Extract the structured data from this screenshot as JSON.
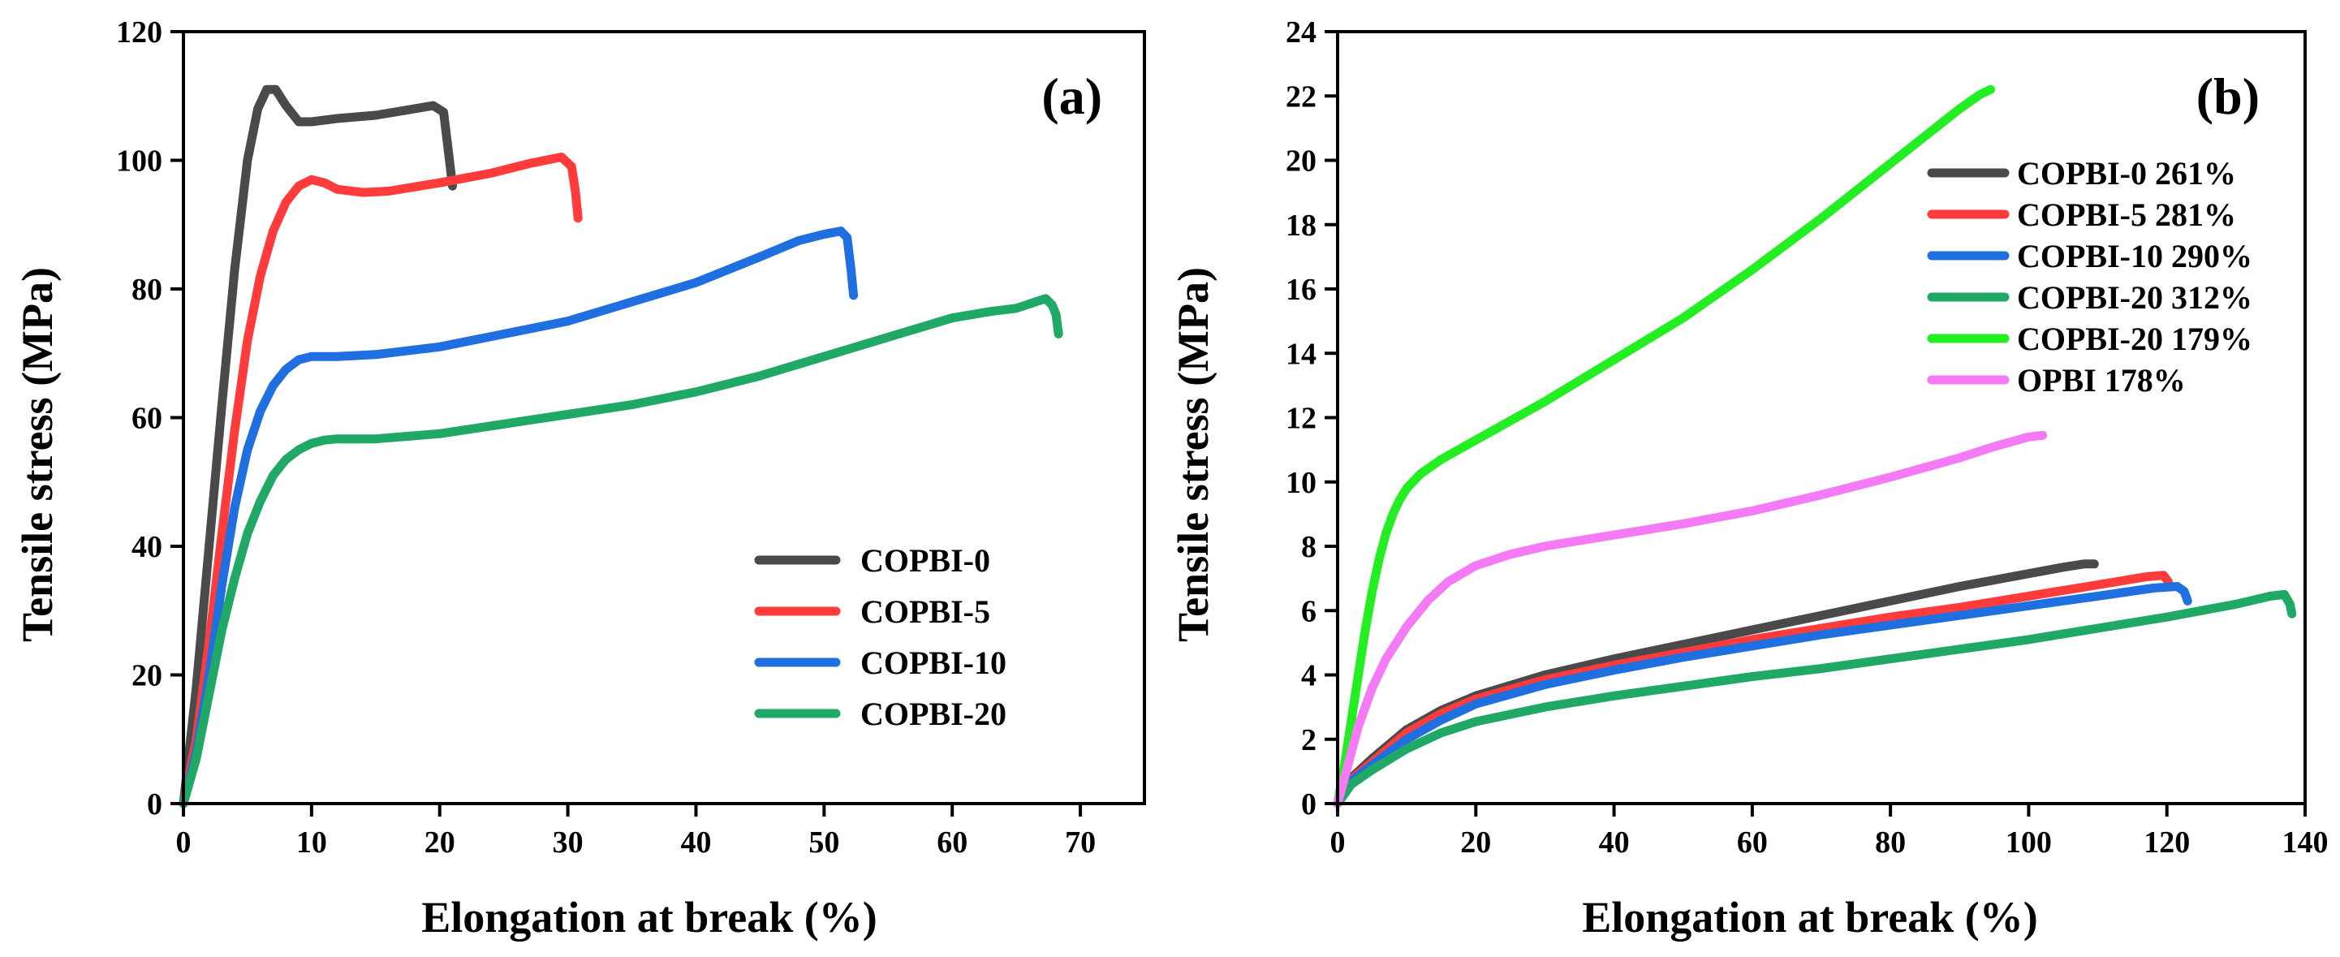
{
  "chart_data": [
    {
      "type": "line",
      "panel_label": "(a)",
      "xlabel": "Elongation at break (%)",
      "ylabel": "Tensile stress (MPa)",
      "xlim": [
        0,
        75
      ],
      "ylim": [
        0,
        120
      ],
      "xticks": [
        0,
        10,
        20,
        30,
        40,
        50,
        60,
        70
      ],
      "yticks": [
        0,
        20,
        40,
        60,
        80,
        100,
        120
      ],
      "grid": false,
      "legend": "bottom-right",
      "series": [
        {
          "name": "COPBI-0",
          "color": "#4a4a4a",
          "x": [
            0,
            1,
            2,
            3,
            4,
            5,
            5.8,
            6.5,
            7.2,
            8,
            9,
            10,
            12,
            15,
            18,
            19.5,
            20.3,
            20.7,
            21
          ],
          "y": [
            0,
            18,
            40,
            62,
            83,
            100,
            108,
            111,
            111,
            108.5,
            106,
            106,
            106.5,
            107,
            108,
            108.5,
            107.5,
            101,
            96
          ]
        },
        {
          "name": "COPBI-5",
          "color": "#ff3b3b",
          "x": [
            0,
            1,
            2,
            3,
            4,
            5,
            6,
            7,
            8,
            9,
            10,
            11,
            12,
            14,
            16,
            20,
            24,
            27,
            29.5,
            30.3,
            30.6,
            30.8
          ],
          "y": [
            0,
            10,
            25,
            42,
            58,
            72,
            82,
            89,
            93.5,
            96,
            97,
            96.5,
            95.5,
            95,
            95.2,
            96.5,
            98,
            99.5,
            100.5,
            99,
            95,
            91
          ]
        },
        {
          "name": "COPBI-10",
          "color": "#1f6fe0",
          "x": [
            0,
            1,
            2,
            3,
            4,
            5,
            6,
            7,
            8,
            9,
            10,
            12,
            15,
            20,
            25,
            30,
            35,
            40,
            45,
            48,
            50,
            51.3,
            51.8,
            52.1,
            52.3
          ],
          "y": [
            0,
            8,
            20,
            34,
            46,
            55,
            61,
            65,
            67.5,
            69,
            69.5,
            69.5,
            69.8,
            71,
            73,
            75,
            78,
            81,
            85,
            87.5,
            88.5,
            89,
            88,
            83,
            79
          ]
        },
        {
          "name": "COPBI-20",
          "color": "#1fa866",
          "x": [
            0,
            1,
            2,
            3,
            4,
            5,
            6,
            7,
            8,
            9,
            10,
            11,
            12,
            15,
            20,
            25,
            30,
            35,
            40,
            45,
            50,
            55,
            60,
            63,
            65,
            66.5,
            67.3,
            67.8,
            68.1,
            68.3
          ],
          "y": [
            0,
            7,
            17,
            27,
            35,
            42,
            47,
            51,
            53.5,
            55,
            56,
            56.5,
            56.7,
            56.7,
            57.5,
            59,
            60.5,
            62,
            64,
            66.5,
            69.5,
            72.5,
            75.5,
            76.5,
            77,
            78,
            78.5,
            77.5,
            76,
            73
          ]
        }
      ]
    },
    {
      "type": "line",
      "panel_label": "(b)",
      "xlabel": "Elongation at break (%)",
      "ylabel": "Tensile stress (MPa)",
      "xlim": [
        0,
        140
      ],
      "ylim": [
        0,
        24
      ],
      "xticks": [
        0,
        20,
        40,
        60,
        80,
        100,
        120,
        140
      ],
      "yticks": [
        0,
        2,
        4,
        6,
        8,
        10,
        12,
        14,
        16,
        18,
        20,
        22,
        24
      ],
      "grid": false,
      "legend": "top-right",
      "series": [
        {
          "name": "COPBI-0 261%",
          "color": "#4a4a4a",
          "x": [
            0,
            2,
            5,
            10,
            15,
            20,
            30,
            40,
            50,
            60,
            70,
            80,
            90,
            100,
            105,
            108,
            109.5
          ],
          "y": [
            0,
            0.8,
            1.4,
            2.3,
            2.9,
            3.35,
            4.0,
            4.5,
            4.95,
            5.4,
            5.85,
            6.3,
            6.75,
            7.15,
            7.35,
            7.45,
            7.45
          ]
        },
        {
          "name": "COPBI-5 281%",
          "color": "#ff3b3b",
          "x": [
            0,
            2,
            5,
            10,
            15,
            20,
            30,
            40,
            50,
            60,
            70,
            80,
            90,
            100,
            110,
            117,
            119.5,
            120.2
          ],
          "y": [
            0,
            0.75,
            1.3,
            2.2,
            2.8,
            3.25,
            3.85,
            4.3,
            4.7,
            5.1,
            5.45,
            5.8,
            6.1,
            6.45,
            6.8,
            7.05,
            7.1,
            6.9
          ]
        },
        {
          "name": "COPBI-10 290%",
          "color": "#1f6fe0",
          "x": [
            0,
            2,
            5,
            10,
            15,
            20,
            30,
            40,
            50,
            60,
            70,
            80,
            90,
            100,
            110,
            118,
            121.5,
            122.5,
            123
          ],
          "y": [
            0,
            0.7,
            1.2,
            2.0,
            2.6,
            3.1,
            3.7,
            4.15,
            4.55,
            4.9,
            5.25,
            5.55,
            5.85,
            6.15,
            6.45,
            6.7,
            6.75,
            6.6,
            6.3
          ]
        },
        {
          "name": "COPBI-20 312%",
          "color": "#1fa866",
          "x": [
            0,
            2,
            5,
            10,
            15,
            20,
            30,
            40,
            50,
            60,
            70,
            80,
            90,
            100,
            110,
            120,
            130,
            135,
            137,
            137.8,
            138.1
          ],
          "y": [
            0,
            0.6,
            1.05,
            1.7,
            2.2,
            2.55,
            3.0,
            3.35,
            3.65,
            3.95,
            4.2,
            4.5,
            4.8,
            5.1,
            5.45,
            5.8,
            6.2,
            6.45,
            6.5,
            6.2,
            5.9
          ]
        },
        {
          "name": "COPBI-20 179%",
          "color": "#22ee22",
          "x": [
            0,
            1,
            2,
            3,
            4,
            5,
            6,
            7,
            8,
            9,
            10,
            12,
            15,
            20,
            30,
            40,
            50,
            60,
            70,
            80,
            90,
            93,
            94.5
          ],
          "y": [
            0,
            1.2,
            2.6,
            4.0,
            5.4,
            6.6,
            7.6,
            8.4,
            9.0,
            9.45,
            9.8,
            10.25,
            10.7,
            11.3,
            12.5,
            13.8,
            15.1,
            16.6,
            18.2,
            19.9,
            21.6,
            22.05,
            22.2
          ]
        },
        {
          "name": "OPBI 178%",
          "color": "#f57af5",
          "x": [
            0,
            1,
            2,
            3,
            5,
            7,
            10,
            13,
            16,
            20,
            25,
            30,
            40,
            50,
            60,
            70,
            80,
            90,
            95,
            100,
            102
          ],
          "y": [
            0,
            0.8,
            1.6,
            2.4,
            3.6,
            4.5,
            5.5,
            6.3,
            6.9,
            7.4,
            7.75,
            8.0,
            8.35,
            8.7,
            9.1,
            9.6,
            10.15,
            10.75,
            11.1,
            11.4,
            11.45
          ]
        }
      ]
    }
  ]
}
